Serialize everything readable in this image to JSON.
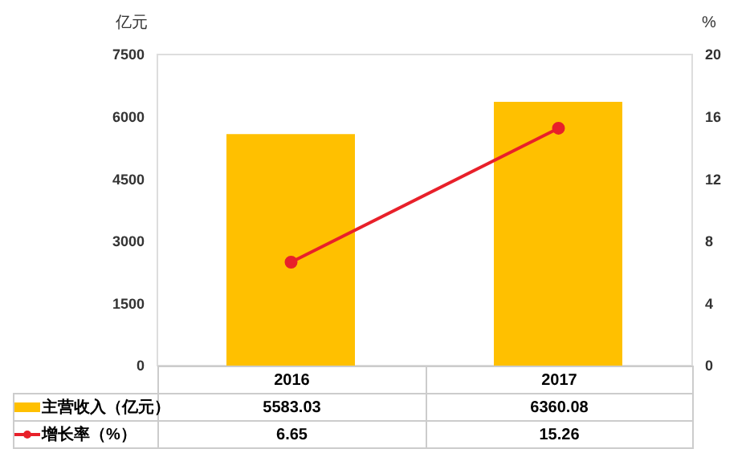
{
  "chart_data": {
    "type": "bar",
    "categories": [
      "2016",
      "2017"
    ],
    "ylabel": "亿元",
    "y2label": "%",
    "ylim": [
      0,
      7500
    ],
    "yticks": [
      0,
      1500,
      3000,
      4500,
      6000,
      7500
    ],
    "y2lim": [
      0,
      20
    ],
    "y2ticks": [
      0,
      4,
      8,
      12,
      16,
      20
    ],
    "data_labels": true,
    "legend": "bottom",
    "series": [
      {
        "name": "主营收入（亿元）",
        "color": "#ffc000",
        "values": [
          5583.03,
          6360.08
        ]
      },
      {
        "name": "增长率（%）",
        "type": "line",
        "axis": "y2",
        "color": "#e8202a",
        "marker": "circle",
        "values": [
          6.65,
          15.26
        ]
      }
    ]
  }
}
